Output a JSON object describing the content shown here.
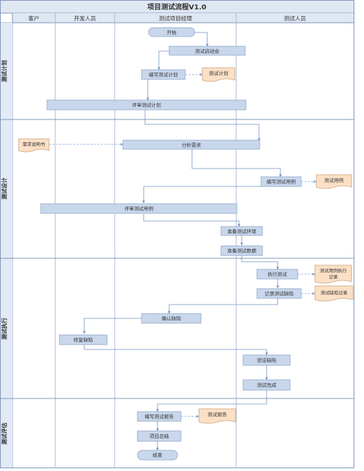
{
  "title": "项目测试流程V1.0",
  "colors": {
    "border": "#7f95b8",
    "grid": "#aab8d0",
    "header_fill": "#dfe7f3",
    "lane_label_fill": "#e3eaf5",
    "process_fill": "#c9d7ec",
    "process_stroke": "#8ea5c8",
    "document_fill": "#fbe0c6",
    "document_stroke": "#c9a07a",
    "connector": "#6f8fc4",
    "dashed_connector": "#7aa0d6",
    "text": "#333333"
  },
  "columns": [
    "客户",
    "开发人员",
    "测试项目经理",
    "测试人员"
  ],
  "phases": [
    "测试计划",
    "测试设计",
    "测试执行",
    "测试评估"
  ],
  "nodes": {
    "start": "开始",
    "kickoff": "测试启动会",
    "write_plan": "编写测试计划",
    "plan_doc": "测试计划",
    "review_plan": "评审测试计划",
    "req_doc": "需求说明书",
    "analyze_req": "分析需求",
    "write_cases": "编写测试用例",
    "cases_doc": "测试用例",
    "review_cases": "评审测试用例",
    "prep_env": "准备测试环境",
    "prep_data": "准备测试数据",
    "execute": "执行测试",
    "exec_doc_line1": "测试用例执行",
    "exec_doc_line2": "记录",
    "record_defects": "记录测试缺陷",
    "defect_doc": "测试缺陷记录",
    "confirm_defects": "确认缺陷",
    "fix_defects": "修复缺陷",
    "verify_defects": "验证缺陷",
    "test_done": "测试完成",
    "write_report": "编写测试报告",
    "report_doc": "测试报告",
    "summary": "项目总结",
    "end": "结束"
  }
}
